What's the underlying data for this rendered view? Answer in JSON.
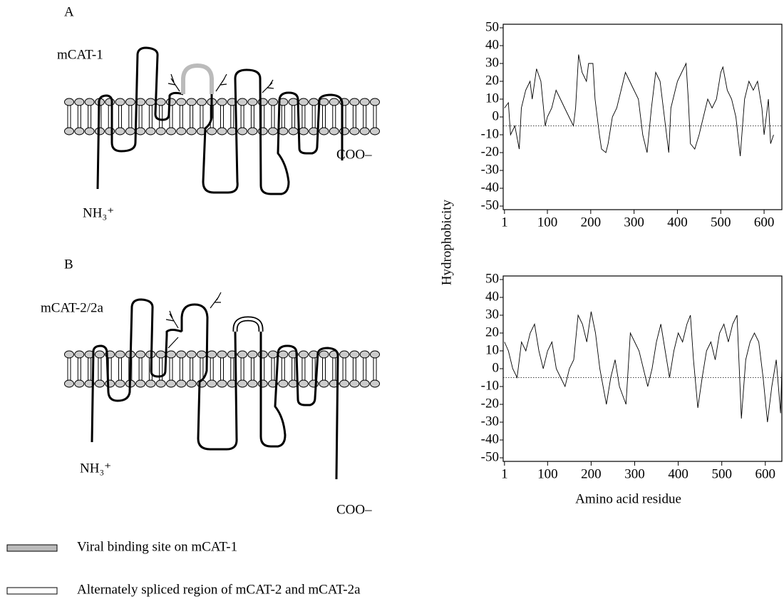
{
  "panels": [
    {
      "letter": "A",
      "protein": "mCAT-1",
      "n_term": "NH₃⁺",
      "c_term": "COO–"
    },
    {
      "letter": "B",
      "protein": "mCAT-2/2a",
      "n_term": "NH₃⁺",
      "c_term": "COO–"
    }
  ],
  "legend": [
    "Viral binding site on mCAT-1",
    "Alternately spliced region of mCAT-2 and mCAT-2a"
  ],
  "chart_data": [
    {
      "type": "line",
      "ylabel": "Hydrophobicity",
      "x": [
        1,
        10,
        15,
        25,
        35,
        40,
        50,
        60,
        65,
        75,
        85,
        95,
        100,
        110,
        120,
        130,
        140,
        150,
        160,
        165,
        172,
        180,
        190,
        195,
        205,
        210,
        220,
        225,
        235,
        240,
        250,
        260,
        270,
        280,
        290,
        300,
        310,
        320,
        330,
        340,
        350,
        360,
        370,
        380,
        385,
        395,
        400,
        410,
        420,
        425,
        430,
        440,
        450,
        460,
        470,
        480,
        490,
        500,
        505,
        515,
        525,
        535,
        545,
        555,
        565,
        575,
        585,
        595,
        600,
        610,
        615,
        622
      ],
      "values": [
        5,
        8,
        -10,
        -5,
        -18,
        5,
        15,
        20,
        10,
        27,
        20,
        -5,
        0,
        5,
        15,
        10,
        5,
        0,
        -5,
        5,
        35,
        25,
        20,
        30,
        30,
        10,
        -10,
        -18,
        -20,
        -15,
        0,
        5,
        15,
        25,
        20,
        15,
        10,
        -10,
        -20,
        5,
        25,
        20,
        0,
        -20,
        5,
        15,
        20,
        25,
        30,
        10,
        -15,
        -18,
        -10,
        0,
        10,
        5,
        10,
        25,
        28,
        15,
        10,
        0,
        -22,
        10,
        20,
        15,
        20,
        5,
        -10,
        10,
        -15,
        -10
      ],
      "color": "#000000",
      "baseline": -5,
      "xlim": [
        -2,
        641
      ],
      "xticks": [
        1,
        100,
        200,
        300,
        400,
        500,
        600
      ],
      "ylim": [
        -52,
        52
      ],
      "yticks": [
        -50,
        -40,
        -30,
        -20,
        -10,
        0,
        10,
        20,
        30,
        40,
        50
      ]
    },
    {
      "type": "line",
      "xlabel": "Amino acid residue",
      "x": [
        1,
        10,
        20,
        30,
        40,
        50,
        60,
        70,
        80,
        90,
        100,
        110,
        120,
        130,
        140,
        150,
        160,
        170,
        180,
        190,
        200,
        210,
        220,
        235,
        245,
        255,
        265,
        280,
        290,
        300,
        310,
        320,
        330,
        340,
        350,
        360,
        370,
        380,
        390,
        400,
        410,
        420,
        428,
        435,
        445,
        455,
        465,
        475,
        485,
        495,
        505,
        515,
        525,
        535,
        545,
        555,
        565,
        575,
        585,
        595,
        605,
        615,
        625,
        635,
        638
      ],
      "values": [
        15,
        10,
        0,
        -5,
        15,
        10,
        20,
        25,
        10,
        0,
        10,
        15,
        0,
        -5,
        -10,
        0,
        5,
        30,
        25,
        15,
        32,
        20,
        0,
        -20,
        -5,
        5,
        -10,
        -20,
        20,
        15,
        10,
        0,
        -10,
        0,
        15,
        25,
        10,
        -5,
        10,
        20,
        15,
        25,
        30,
        5,
        -22,
        -5,
        10,
        15,
        5,
        20,
        25,
        15,
        25,
        30,
        -28,
        5,
        15,
        20,
        15,
        -5,
        -30,
        -10,
        5,
        -25,
        0
      ],
      "color": "#000000",
      "baseline": -5,
      "xlim": [
        -2,
        638
      ],
      "xticks": [
        1,
        100,
        200,
        300,
        400,
        500,
        600
      ],
      "ylim": [
        -52,
        52
      ],
      "yticks": [
        -50,
        -40,
        -30,
        -20,
        -10,
        0,
        10,
        20,
        30,
        40,
        50
      ]
    }
  ]
}
